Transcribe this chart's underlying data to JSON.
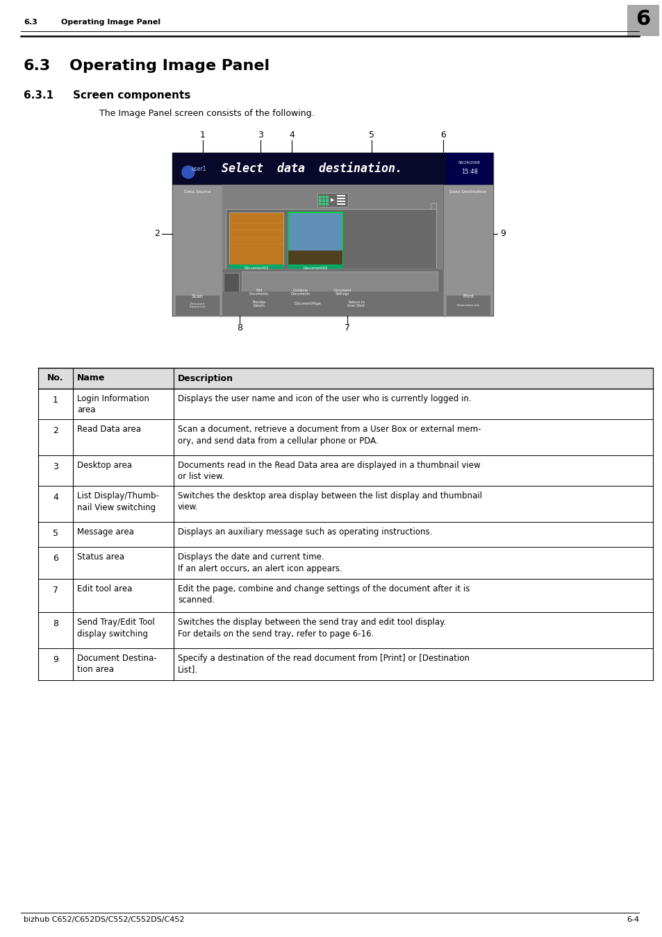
{
  "page_header_section": "6.3",
  "page_header_title": "Operating Image Panel",
  "page_number_box": "6",
  "section_num": "6.3",
  "section_title": "Operating Image Panel",
  "subsection_num": "6.3.1",
  "subsection_title": "Screen components",
  "intro_text": "The Image Panel screen consists of the following.",
  "footer_left": "bizhub C652/C652DS/C552/C552DS/C452",
  "footer_right": "6-4",
  "table_headers": [
    "No.",
    "Name",
    "Description"
  ],
  "table_rows": [
    [
      "1",
      "Login Information\narea",
      "Displays the user name and icon of the user who is currently logged in."
    ],
    [
      "2",
      "Read Data area",
      "Scan a document, retrieve a document from a User Box or external mem-\nory, and send data from a cellular phone or PDA."
    ],
    [
      "3",
      "Desktop area",
      "Documents read in the Read Data area are displayed in a thumbnail view\nor list view."
    ],
    [
      "4",
      "List Display/Thumb-\nnail View switching",
      "Switches the desktop area display between the list display and thumbnail\nview."
    ],
    [
      "5",
      "Message area",
      "Displays an auxiliary message such as operating instructions."
    ],
    [
      "6",
      "Status area",
      "Displays the date and current time.\nIf an alert occurs, an alert icon appears."
    ],
    [
      "7",
      "Edit tool area",
      "Edit the page, combine and change settings of the document after it is\nscanned."
    ],
    [
      "8",
      "Send Tray/Edit Tool\ndisplay switching",
      "Switches the display between the send tray and edit tool display.\nFor details on the send tray, refer to page 6-16."
    ],
    [
      "9",
      "Document Destina-\ntion area",
      "Specify a destination of the read document from [Print] or [Destination\nList]."
    ]
  ],
  "bg_color": "#ffffff",
  "screen_bg": "#808080",
  "screen_dark_bar": "#0a0a2a",
  "screen_left_right_panel": "#909090",
  "screen_center": "#808080",
  "thumb_bg": "#707070",
  "orange_color": "#c87020",
  "sky_color": "#6090c0",
  "green_label": "#00aa77",
  "date_box_color": "#000055"
}
